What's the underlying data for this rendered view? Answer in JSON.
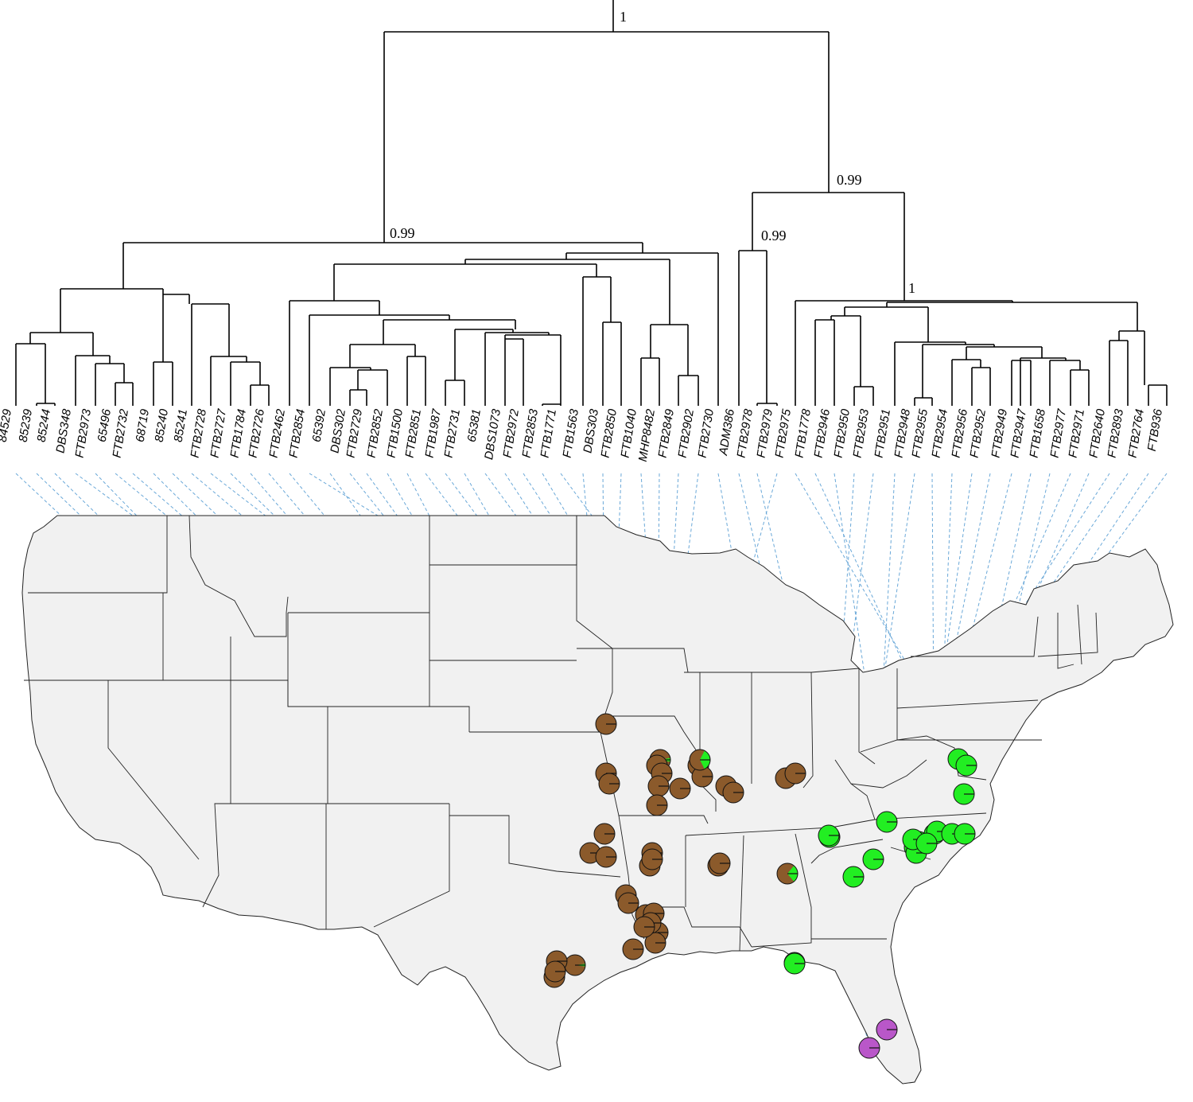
{
  "figure": {
    "colors": {
      "clusters": {
        "brown": "#8B5A2B",
        "green": "#22EE22",
        "purple": "#B957C9"
      },
      "connector": "#6aa8d8",
      "land": "#f1f1f1",
      "borders": "#222222"
    }
  },
  "tree": {
    "support_values": [
      {
        "id": "root",
        "label": "1"
      },
      {
        "id": "west-clade",
        "label": "0.99"
      },
      {
        "id": "east-clade",
        "label": "0.99"
      },
      {
        "id": "adm-clade",
        "label": "0.99"
      },
      {
        "id": "green-clade",
        "label": "1"
      }
    ],
    "leaves": [
      "84529",
      "85239",
      "85244",
      "DBS348",
      "FTB2973",
      "65496",
      "FTB2732",
      "68719",
      "85240",
      "85241",
      "FTB2728",
      "FTB2727",
      "FTB1784",
      "FTB2726",
      "FTB2462",
      "FTB2854",
      "65392",
      "DBS302",
      "FTB2729",
      "FTB2852",
      "FTB1500",
      "FTB2851",
      "FTB1987",
      "FTB2731",
      "65381",
      "DBS1073",
      "FTB2972",
      "FTB2853",
      "FTB1771",
      "FTB1563",
      "DBS303",
      "FTB2850",
      "FTB1040",
      "MHP8482",
      "FTB2849",
      "FTB2902",
      "FTB2730",
      "ADM386",
      "FTB2978",
      "FTB2979",
      "FTB2975",
      "FTB1778",
      "FTB2946",
      "FTB2950",
      "FTB2953",
      "FTB2951",
      "FTB2948",
      "FTB2955",
      "FTB2954",
      "FTB2956",
      "FTB2952",
      "FTB2949",
      "FTB2947",
      "FTB1658",
      "FTB2977",
      "FTB2971",
      "FTB2640",
      "FTB2893",
      "FTB2764",
      "FTB936"
    ]
  },
  "map": {
    "samples": [
      {
        "cluster": "brown"
      },
      {
        "cluster": "brown"
      },
      {
        "cluster": "brown"
      },
      {
        "cluster": "brown"
      },
      {
        "cluster": "brown"
      },
      {
        "cluster": "brown"
      },
      {
        "cluster": "brown"
      },
      {
        "cluster": "brown"
      },
      {
        "cluster": "brown"
      },
      {
        "cluster": "brown"
      },
      {
        "cluster": "brown"
      },
      {
        "cluster": "brown"
      },
      {
        "cluster": "brown"
      },
      {
        "cluster": "brown"
      },
      {
        "cluster": "brown"
      },
      {
        "cluster": "brown"
      },
      {
        "cluster": "brown"
      },
      {
        "cluster": "brown"
      },
      {
        "cluster": "brown"
      },
      {
        "cluster": "brown"
      },
      {
        "cluster": "brown"
      },
      {
        "cluster": "brown"
      },
      {
        "cluster": "brown"
      },
      {
        "cluster": "brown"
      },
      {
        "cluster": "brown"
      },
      {
        "cluster": "brown"
      },
      {
        "cluster": "brown"
      },
      {
        "cluster": "brown"
      },
      {
        "cluster": "brown"
      },
      {
        "cluster": "brown"
      },
      {
        "cluster": "brown"
      },
      {
        "cluster": "brown"
      },
      {
        "cluster": "brown"
      },
      {
        "cluster": "brown"
      },
      {
        "cluster": "brown"
      },
      {
        "cluster": "brown"
      },
      {
        "cluster": "brown"
      },
      {
        "cluster": "brown"
      },
      {
        "cluster": "green"
      },
      {
        "cluster": "green"
      },
      {
        "cluster": "green"
      },
      {
        "cluster": "green"
      },
      {
        "cluster": "green"
      },
      {
        "cluster": "green"
      },
      {
        "cluster": "green"
      },
      {
        "cluster": "green"
      },
      {
        "cluster": "green"
      },
      {
        "cluster": "green"
      },
      {
        "cluster": "green"
      },
      {
        "cluster": "green"
      },
      {
        "cluster": "green"
      },
      {
        "cluster": "green"
      },
      {
        "cluster": "green"
      },
      {
        "cluster": "green"
      },
      {
        "cluster": "green"
      },
      {
        "cluster": "green"
      },
      {
        "cluster": "green"
      },
      {
        "cluster": "purple"
      },
      {
        "cluster": "purple"
      }
    ]
  }
}
